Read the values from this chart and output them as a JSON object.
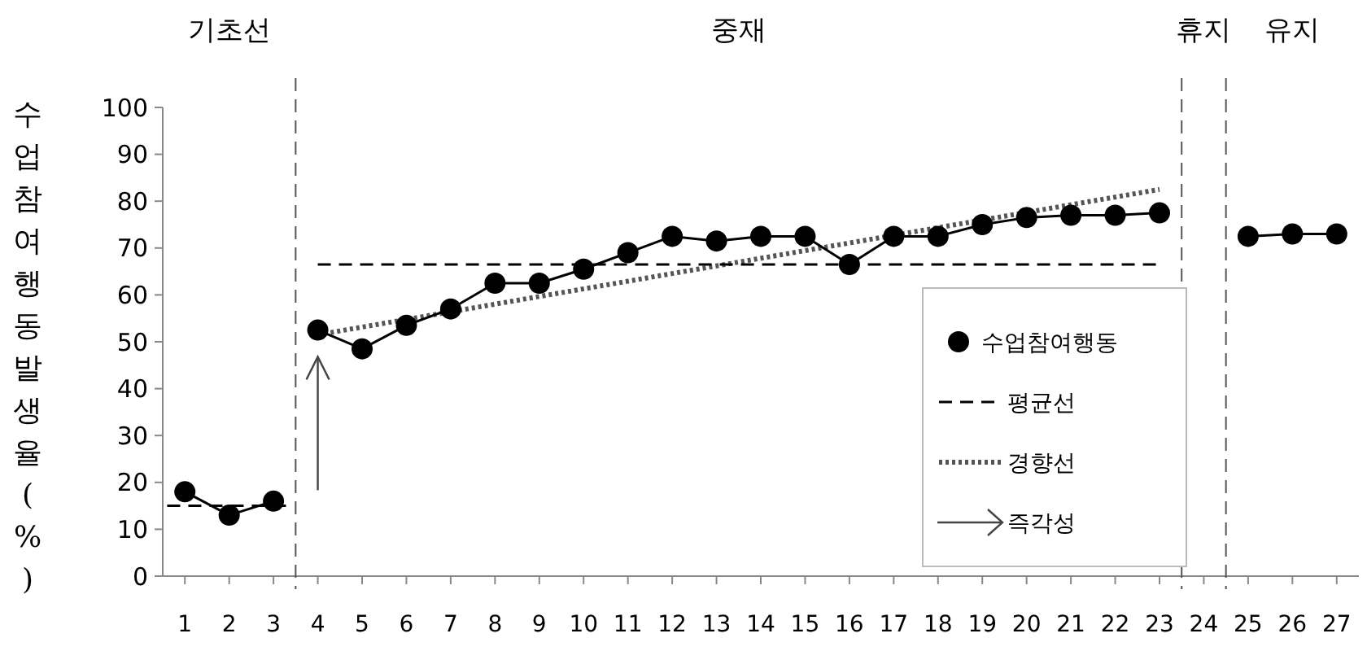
{
  "chart_data": {
    "type": "line",
    "ylabel": "수업참여행동발생율(%)",
    "xlim": [
      0.5,
      27.5
    ],
    "xticks": [
      1,
      2,
      3,
      4,
      5,
      6,
      7,
      8,
      9,
      10,
      11,
      12,
      13,
      14,
      15,
      16,
      17,
      18,
      19,
      20,
      21,
      22,
      23,
      24,
      25,
      26,
      27
    ],
    "ylim": [
      0,
      100
    ],
    "yticks": [
      0,
      10,
      20,
      30,
      40,
      50,
      60,
      70,
      80,
      90,
      100
    ],
    "grid": false,
    "legend": "bottom right",
    "marker": "circle",
    "series": [
      {
        "name": "수업참여행동",
        "color": "#000000",
        "line_style": "solid",
        "x": [
          1,
          2,
          3,
          4,
          5,
          6,
          7,
          8,
          9,
          10,
          11,
          12,
          13,
          14,
          15,
          16,
          17,
          18,
          19,
          20,
          21,
          22,
          23,
          25,
          26,
          27
        ],
        "values": [
          18,
          13,
          16,
          52.5,
          48.5,
          53.5,
          57,
          62.5,
          62.5,
          65.5,
          69,
          72.5,
          71.5,
          72.5,
          72.5,
          66.5,
          72.5,
          72.5,
          75,
          76.5,
          77,
          77,
          77.5,
          72.5,
          73,
          73
        ]
      },
      {
        "name": "평균선",
        "color": "#000000",
        "marker": "none",
        "line_style": "dashed",
        "x": [
          0.6,
          3.4,
          3.5,
          4,
          23
        ],
        "values": [
          15,
          15,
          null,
          66.5,
          66.5
        ]
      },
      {
        "name": "경향선",
        "color": "#555555",
        "marker": "none",
        "line_style": "dotted",
        "x": [
          4,
          23
        ],
        "values": [
          51.5,
          82.5
        ]
      }
    ],
    "ref_lines": [
      {
        "axis": "x",
        "value": 3.5,
        "color": "#555555",
        "line_style": "dashed"
      },
      {
        "axis": "x",
        "value": 23.5,
        "color": "#555555",
        "line_style": "dashed"
      },
      {
        "axis": "x",
        "value": 24.5,
        "color": "#555555",
        "line_style": "dashed"
      }
    ],
    "annotations": [
      "기초선",
      "중재",
      "휴지",
      "유지",
      "즉각성"
    ]
  }
}
